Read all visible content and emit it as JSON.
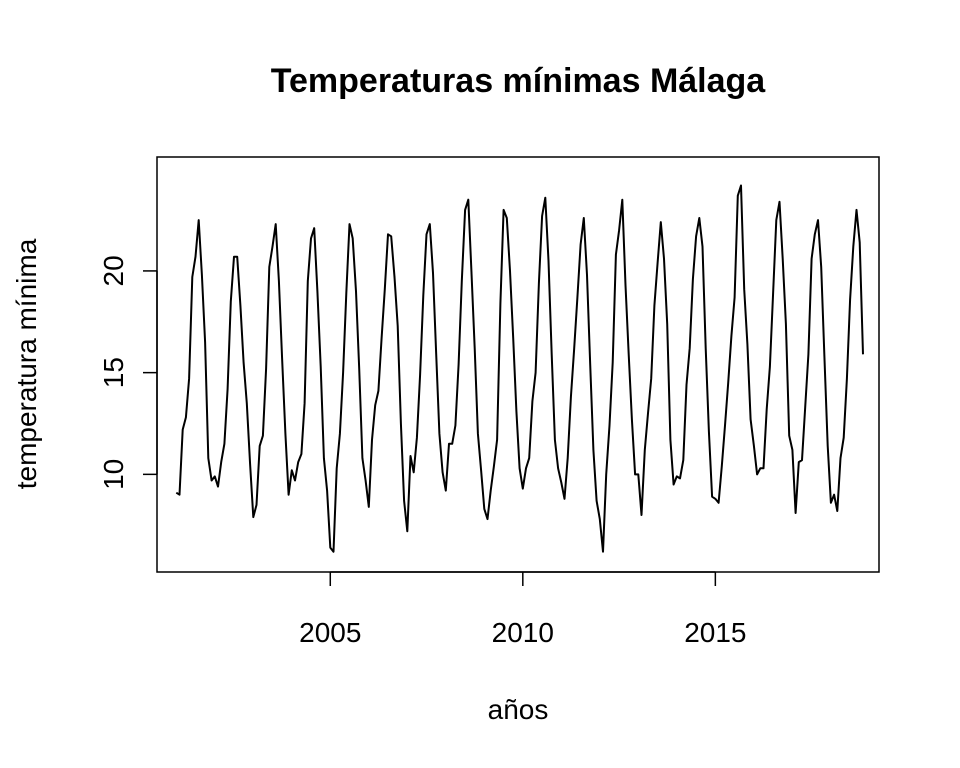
{
  "chart_data": {
    "type": "line",
    "title": "Temperaturas mínimas Málaga",
    "xlabel": "años",
    "ylabel": "temperatura mínima",
    "xlim": [
      2000.5,
      2019.25
    ],
    "ylim": [
      5.2,
      25.6
    ],
    "x_ticks": [
      2005,
      2010,
      2015
    ],
    "y_ticks": [
      10,
      15,
      20
    ],
    "grid": false,
    "legend": "none",
    "line_color": "#000000",
    "series": [
      {
        "x_start": 2001.0,
        "x_step": 0.0833333,
        "values": [
          9.1,
          9.0,
          12.2,
          12.8,
          14.7,
          19.7,
          20.7,
          22.5,
          19.8,
          16.5,
          10.8,
          9.7,
          9.9,
          9.4,
          10.6,
          11.5,
          14.2,
          18.5,
          20.7,
          20.7,
          18.3,
          15.5,
          13.5,
          10.5,
          7.9,
          8.5,
          11.4,
          11.9,
          15.2,
          20.2,
          21.2,
          22.3,
          19.5,
          15.7,
          12.0,
          9.0,
          10.2,
          9.7,
          10.6,
          11.0,
          13.5,
          19.5,
          21.6,
          22.1,
          19.0,
          15.3,
          10.8,
          9.2,
          6.4,
          6.2,
          10.3,
          12.0,
          15.0,
          18.9,
          22.3,
          21.6,
          19.0,
          15.2,
          10.8,
          9.7,
          8.4,
          11.7,
          13.4,
          14.1,
          16.7,
          19.1,
          21.8,
          21.7,
          19.7,
          17.3,
          12.5,
          8.7,
          7.2,
          10.9,
          10.1,
          11.8,
          14.9,
          18.8,
          21.8,
          22.3,
          19.9,
          15.9,
          12.0,
          10.1,
          9.2,
          11.5,
          11.5,
          12.4,
          15.4,
          19.5,
          23.0,
          23.5,
          19.9,
          16.2,
          12.0,
          10.2,
          8.3,
          7.8,
          9.2,
          10.4,
          11.7,
          18.4,
          23.0,
          22.6,
          20.0,
          16.7,
          13.1,
          10.3,
          9.3,
          10.3,
          10.8,
          13.6,
          15.0,
          19.4,
          22.7,
          23.6,
          20.5,
          15.9,
          11.7,
          10.3,
          9.6,
          8.8,
          10.8,
          13.8,
          16.2,
          18.7,
          21.3,
          22.6,
          19.8,
          15.4,
          11.2,
          8.7,
          7.8,
          6.2,
          10.0,
          12.4,
          15.5,
          20.8,
          22.0,
          23.5,
          19.3,
          15.9,
          12.7,
          10.0,
          10.0,
          8.0,
          11.2,
          13.0,
          14.7,
          18.3,
          20.4,
          22.4,
          20.6,
          17.4,
          11.7,
          9.5,
          9.9,
          9.8,
          10.7,
          14.4,
          16.2,
          19.6,
          21.7,
          22.6,
          21.2,
          16.2,
          12.1,
          8.9,
          8.8,
          8.6,
          10.4,
          12.4,
          14.5,
          16.8,
          18.7,
          23.7,
          24.2,
          19.1,
          16.4,
          12.7,
          11.4,
          10.0,
          10.3,
          10.3,
          13.2,
          15.3,
          18.9,
          22.5,
          23.4,
          20.6,
          17.4,
          11.9,
          11.2,
          8.1,
          10.6,
          10.7,
          13.3,
          15.9,
          20.6,
          21.8,
          22.5,
          20.2,
          15.8,
          11.4,
          8.6,
          9.0,
          8.2,
          10.8,
          11.8,
          14.7,
          18.6,
          21.2,
          23.0,
          21.4,
          15.9
        ]
      }
    ]
  }
}
